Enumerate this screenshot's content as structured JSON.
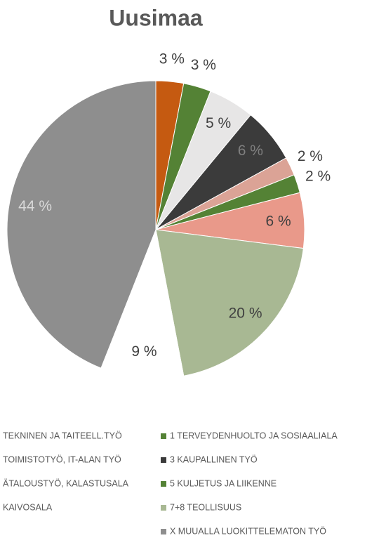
{
  "chart_data": {
    "type": "pie",
    "title": "Uusimaa",
    "categories": [
      "TEKNINEN JA TAITEELL.TYÖ",
      "1 TERVEYDENHUOLTO JA SOSIAALIALA",
      "TOIMISTOTYÖ, IT-ALAN TYÖ",
      "3 KAUPALLINEN TYÖ",
      "ÄTALOUSTYÖ, KALASTUSALA",
      "5 KULJETUS JA LIIKENNE",
      "KAIVOSALA",
      "7+8 TEOLLISUUS",
      null,
      "X MUUALLA LUOKITTELEMATON TYÖ"
    ],
    "values": [
      3,
      3,
      5,
      6,
      2,
      2,
      6,
      20,
      9,
      44
    ],
    "value_labels": [
      "3 %",
      "3 %",
      "5 %",
      "6 %",
      "2 %",
      "2 %",
      "6 %",
      "20 %",
      "9 %",
      "44 %"
    ],
    "colors": [
      "#c55a11",
      "#548235",
      "#e7e6e6",
      "#3b3b3b",
      "#dba396",
      "#548235",
      "#e9998a",
      "#a8b893",
      "#ffffff",
      "#8e8e8e"
    ],
    "legend": "bottom"
  }
}
